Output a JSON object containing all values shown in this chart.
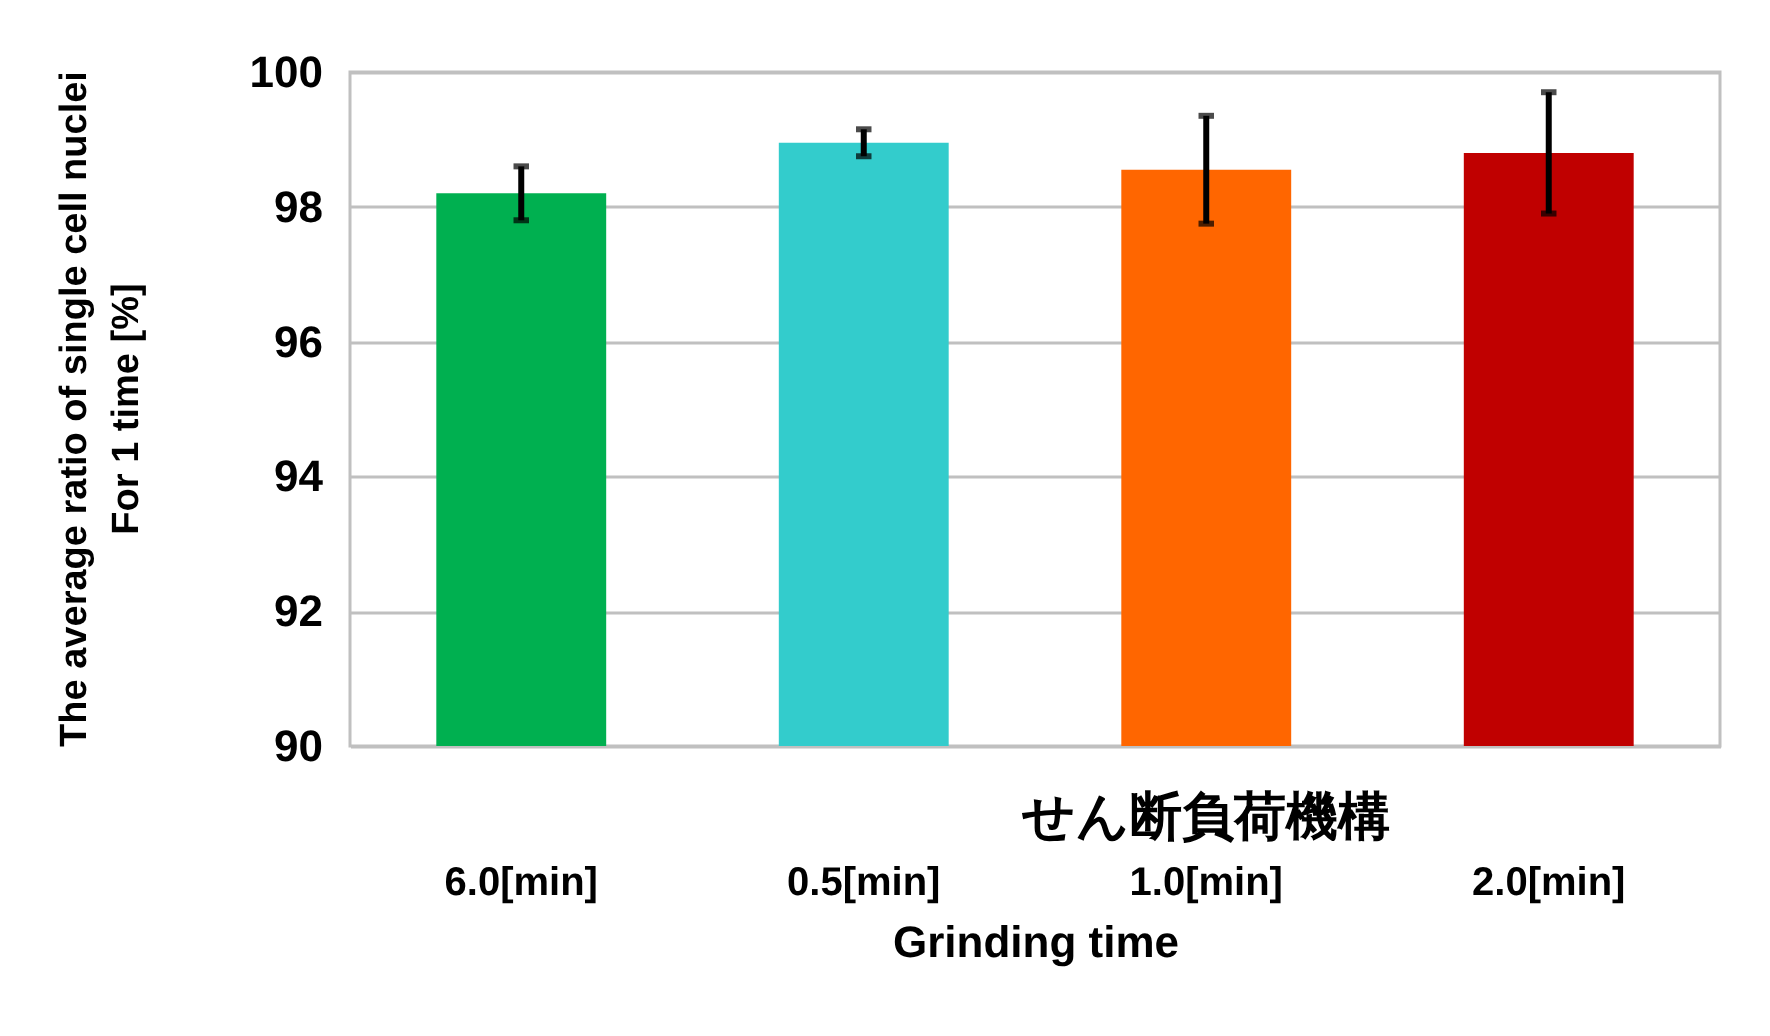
{
  "chart_data": {
    "type": "bar",
    "categories": [
      "6.0[min]",
      "0.5[min]",
      "1.0[min]",
      "2.0[min]"
    ],
    "values": [
      98.2,
      98.95,
      98.55,
      98.8
    ],
    "errors": [
      0.4,
      0.2,
      0.8,
      0.9
    ],
    "colors": [
      "#00b050",
      "#33cccc",
      "#ff6600",
      "#c00000"
    ],
    "xlabel": "Grinding time",
    "ylabel": "The average ratio of single cell nuclei\nFor 1 time [%]",
    "ylim": [
      90,
      100
    ],
    "yticks": [
      90,
      92,
      94,
      96,
      98,
      100
    ],
    "grid": "y",
    "legend": false,
    "annotations": [
      "せん断負荷機構"
    ]
  }
}
